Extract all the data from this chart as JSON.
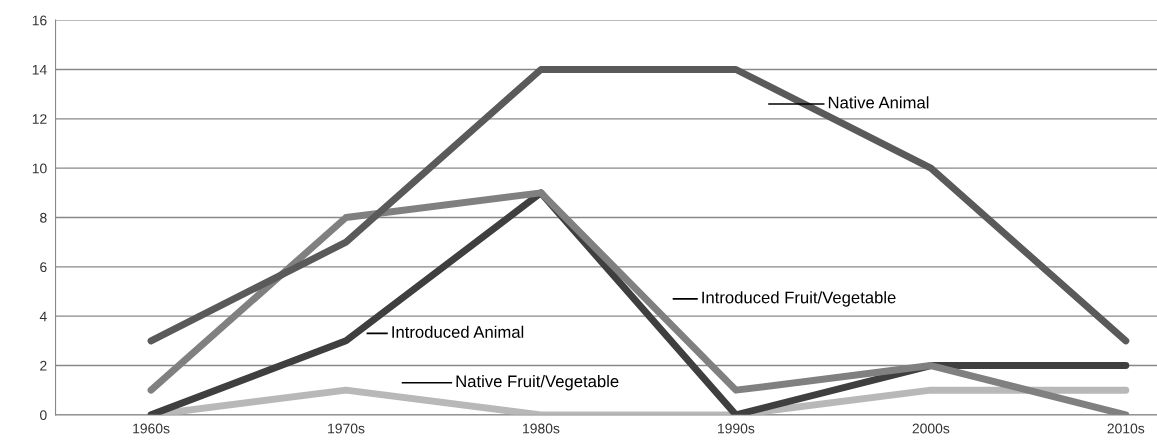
{
  "chart_data": {
    "type": "line",
    "categories": [
      "1960s",
      "1970s",
      "1980s",
      "1990s",
      "2000s",
      "2010s"
    ],
    "series": [
      {
        "name": "Native Animal",
        "color": "#5a5a5a",
        "values": [
          3,
          7,
          14,
          14,
          10,
          3
        ]
      },
      {
        "name": "Introduced Fruit/Vegetable",
        "color": "#808080",
        "values": [
          1,
          8,
          9,
          1,
          2,
          0
        ]
      },
      {
        "name": "Introduced Animal",
        "color": "#3f3f3f",
        "values": [
          0,
          3,
          9,
          0,
          2,
          2
        ]
      },
      {
        "name": "Native Fruit/Vegetable",
        "color": "#b8b8b8",
        "values": [
          0,
          1,
          0,
          0,
          1,
          1
        ]
      }
    ],
    "ylim": [
      0,
      16
    ],
    "yticks": [
      0,
      2,
      4,
      6,
      8,
      10,
      12,
      14,
      16
    ],
    "grid": "y",
    "legend": false,
    "marker": "none",
    "line_style": "solid"
  }
}
